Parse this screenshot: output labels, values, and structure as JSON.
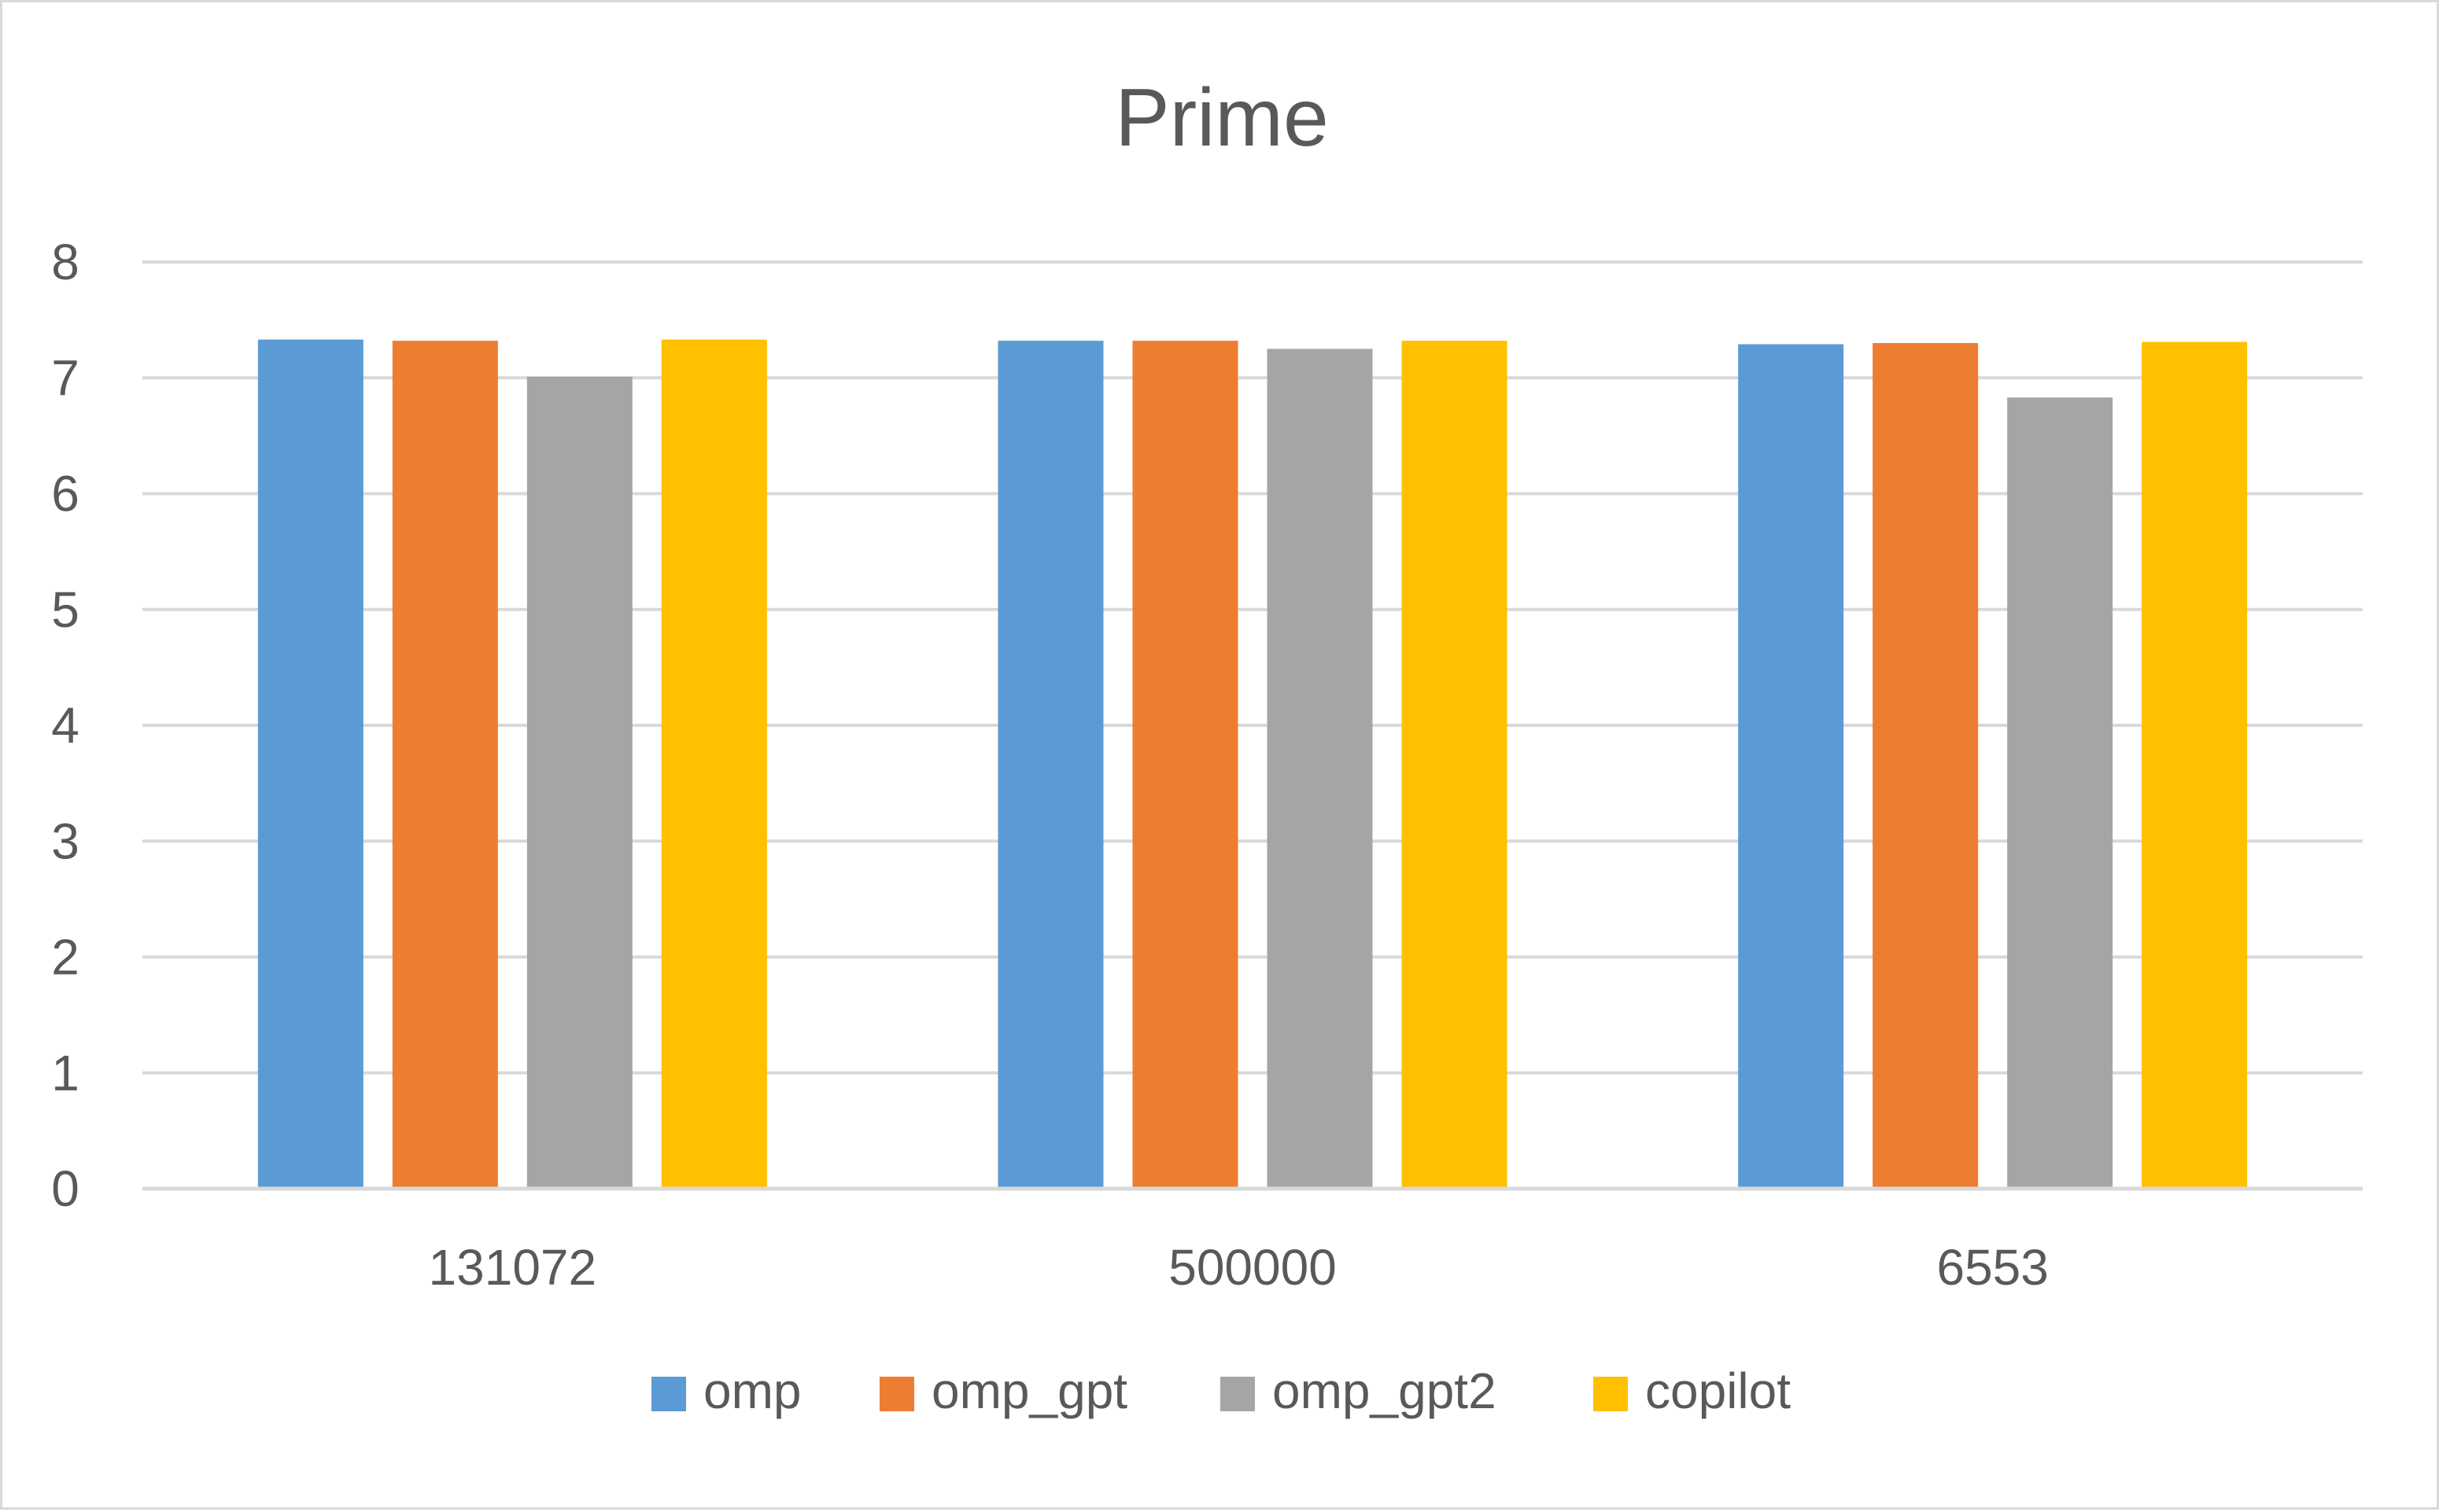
{
  "chart_data": {
    "type": "bar",
    "title": "Prime",
    "xlabel": "",
    "ylabel": "",
    "categories": [
      "131072",
      "500000",
      "6553"
    ],
    "series": [
      {
        "name": "omp",
        "color": "#5b9bd5",
        "values": [
          7.33,
          7.32,
          7.29
        ]
      },
      {
        "name": "omp_gpt",
        "color": "#ed7d31",
        "values": [
          7.32,
          7.32,
          7.3
        ]
      },
      {
        "name": "omp_gpt2",
        "color": "#a5a5a5",
        "values": [
          7.01,
          7.25,
          6.83
        ]
      },
      {
        "name": "copilot",
        "color": "#ffc000",
        "values": [
          7.33,
          7.32,
          7.31
        ]
      }
    ],
    "ylim": [
      0,
      8
    ],
    "yticks": [
      "0",
      "1",
      "2",
      "3",
      "4",
      "5",
      "6",
      "7",
      "8"
    ],
    "grid": true,
    "legend_position": "bottom"
  }
}
